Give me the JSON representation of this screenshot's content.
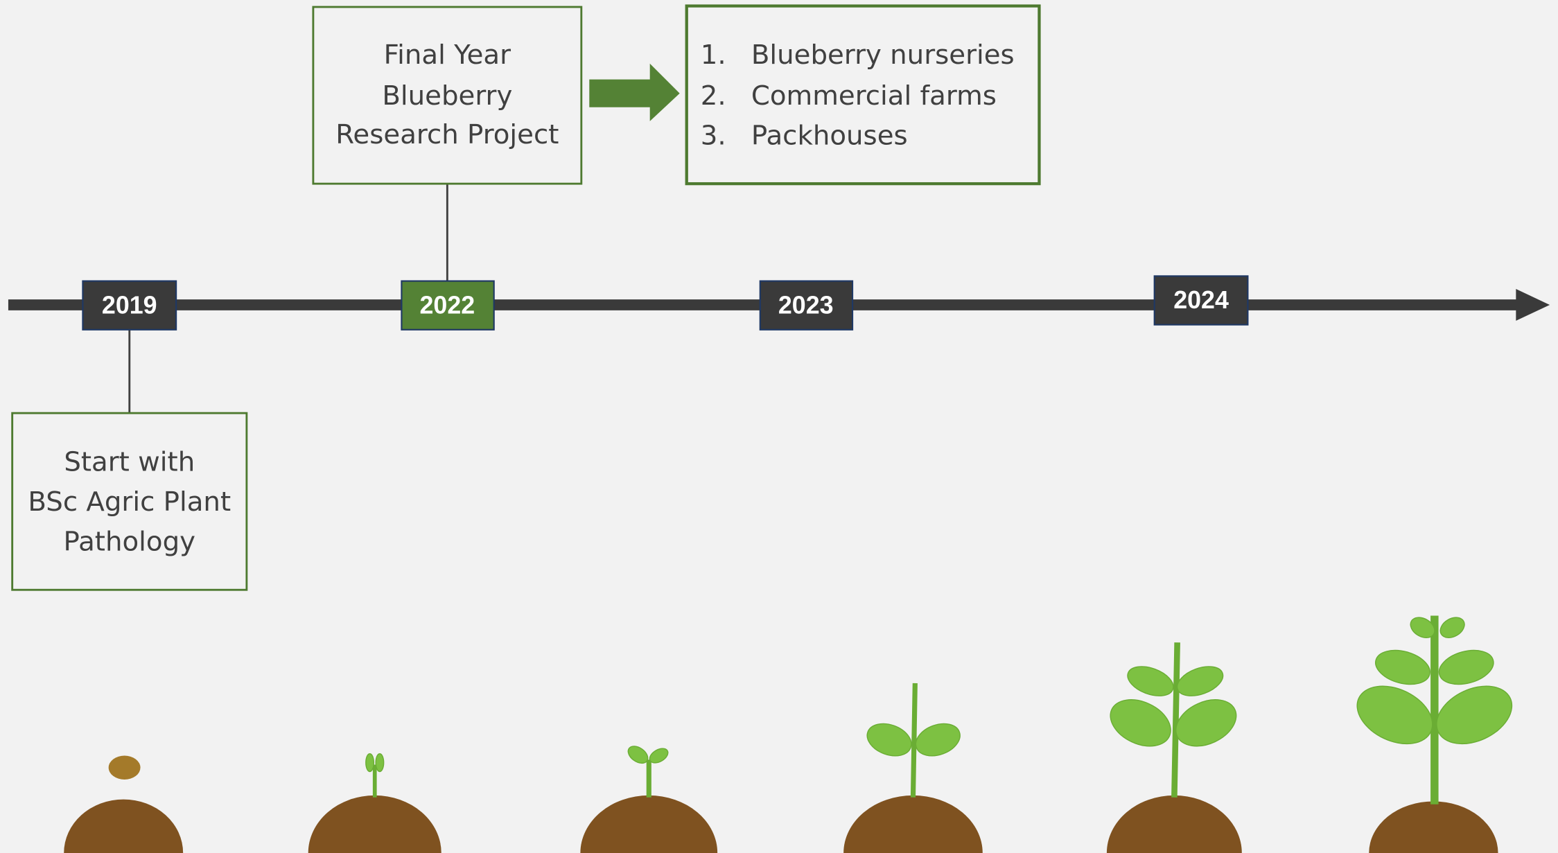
{
  "timeline": {
    "years": [
      "2019",
      "2022",
      "2023",
      "2024"
    ]
  },
  "boxes": [
    {
      "lines": [
        "Start with",
        "BSc Agric Plant",
        "Pathology"
      ]
    },
    {
      "lines": [
        "Final Year",
        "Blueberry",
        "Research Project"
      ]
    }
  ],
  "list": {
    "items": [
      {
        "number": "1.",
        "text": "Blueberry nurseries"
      },
      {
        "number": "2.",
        "text": "Commercial farms"
      },
      {
        "number": "3.",
        "text": "Packhouses"
      }
    ]
  }
}
